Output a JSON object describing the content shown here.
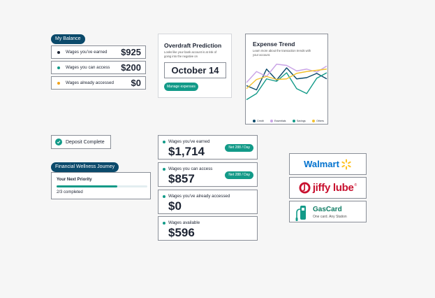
{
  "balance": {
    "title": "My Balance",
    "rows": [
      {
        "label": "Wages you've earned",
        "value": "$925",
        "color": "#1d2433"
      },
      {
        "label": "Wages you can access",
        "value": "$200",
        "color": "#129a88"
      },
      {
        "label": "Wages already accessed",
        "value": "$0",
        "color": "#f2a31b"
      }
    ]
  },
  "overdraft": {
    "title": "Overdraft Prediction",
    "description": "Looks like your bank account is at risk of going into the negative on",
    "date": "October 14",
    "button_label": "Manage expenses"
  },
  "expense_trend": {
    "title": "Expense Trend",
    "description": "Learn more about the transaction trends with your account.",
    "chart_data": {
      "type": "line",
      "x": [
        1,
        2,
        3,
        4,
        5,
        6,
        7,
        8,
        9
      ],
      "series": [
        {
          "name": "Credit",
          "color": "#0b4a6b",
          "values": [
            35,
            28,
            62,
            44,
            64,
            46,
            48,
            55,
            46
          ]
        },
        {
          "name": "Essentials",
          "color": "#c9a3e6",
          "values": [
            40,
            58,
            50,
            70,
            68,
            59,
            62,
            57,
            67
          ]
        },
        {
          "name": "Savings",
          "color": "#129a88",
          "values": [
            12,
            22,
            46,
            42,
            56,
            30,
            22,
            47,
            56
          ]
        },
        {
          "name": "Others",
          "color": "#f2c12e",
          "values": [
            30,
            45,
            50,
            45,
            46,
            55,
            58,
            60,
            62
          ]
        }
      ],
      "ylim": [
        0,
        80
      ]
    }
  },
  "deposit": {
    "label": "Deposit Complete"
  },
  "wellness": {
    "title": "Financial Wellness Journey",
    "priority": "Your Next Priority",
    "progress": 0.67,
    "progress_text": "2/3 completed"
  },
  "wages": [
    {
      "label": "Wages you've earned",
      "value": "$1,714",
      "badge": "Net 288 / Day"
    },
    {
      "label": "Wages you can access",
      "value": "$857",
      "badge": "Net 288 / Day"
    },
    {
      "label": "Wages you've already accessed",
      "value": "$0",
      "badge": ""
    },
    {
      "label": "Wages available",
      "value": "$596",
      "badge": ""
    }
  ],
  "partners": {
    "walmart": "Walmart",
    "jiffy": "jiffy lube",
    "jiffy_mark": "®",
    "gascard_title": "GasCard",
    "gascard_sub": "One card. Any Station"
  },
  "colors": {
    "navy": "#0b4a6b",
    "teal": "#129a88",
    "walmart_blue": "#0071ce",
    "walmart_yellow": "#ffc220",
    "jiffy_red": "#c8102e"
  }
}
